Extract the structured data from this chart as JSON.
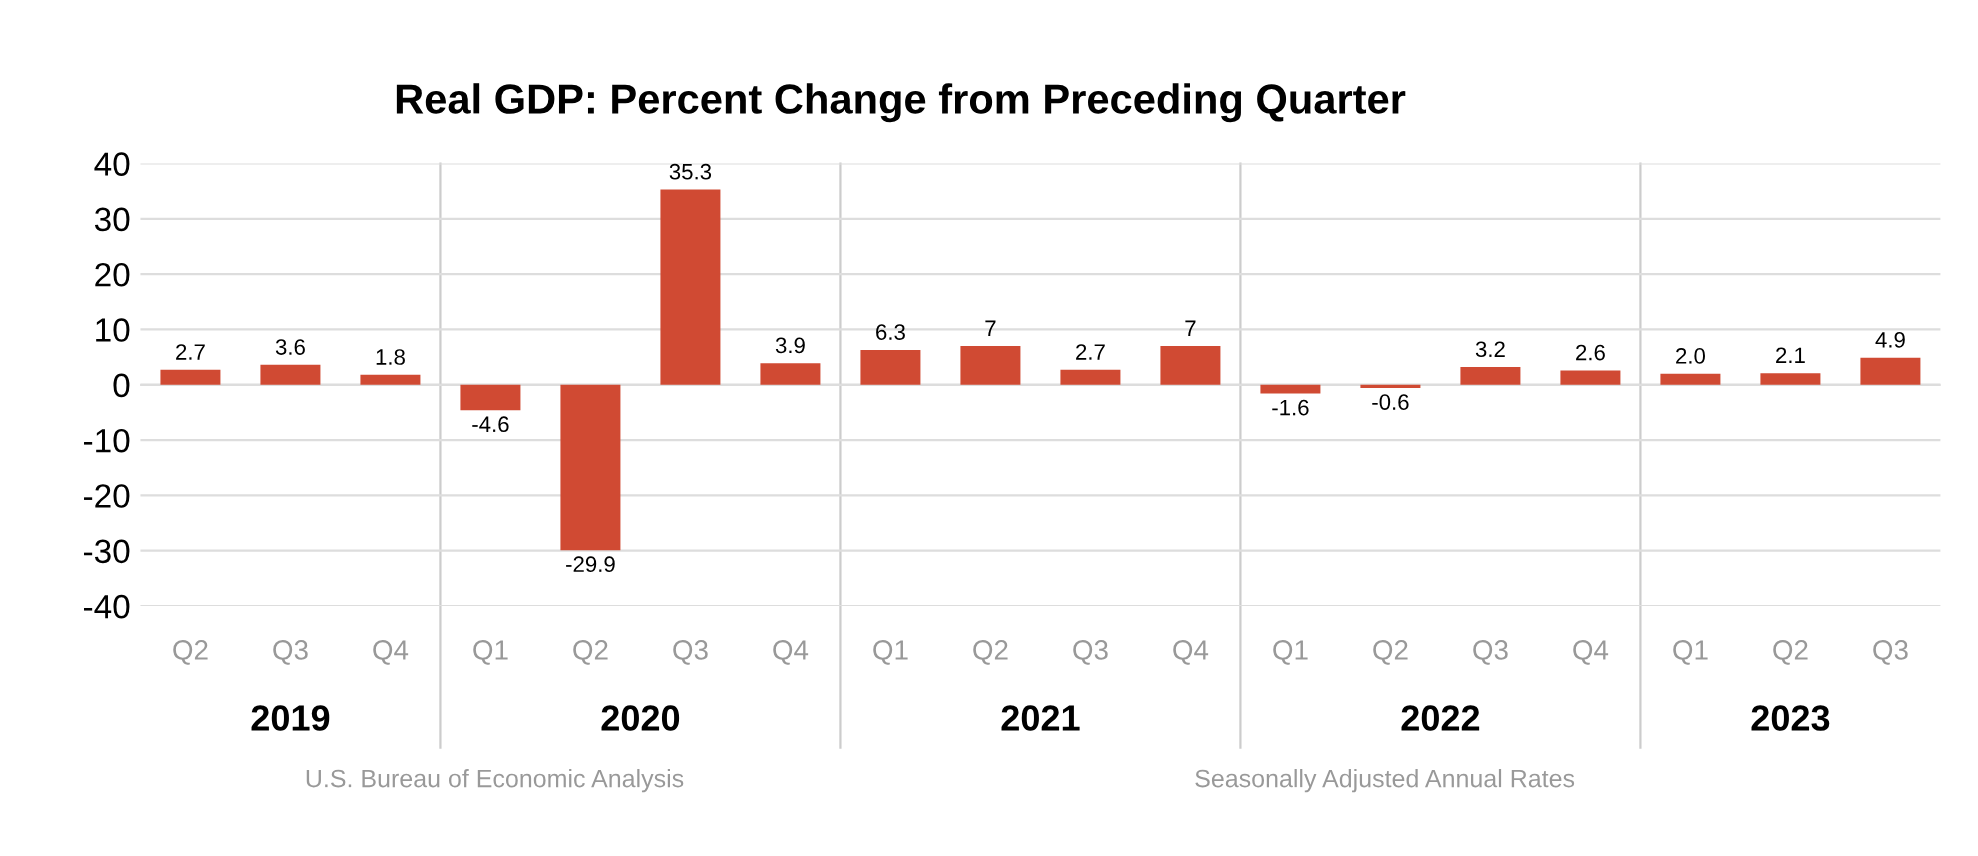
{
  "chart_data": {
    "type": "bar",
    "title": "Real GDP: Percent Change from Preceding Quarter",
    "categories": [
      "Q2",
      "Q3",
      "Q4",
      "Q1",
      "Q2",
      "Q3",
      "Q4",
      "Q1",
      "Q2",
      "Q3",
      "Q4",
      "Q1",
      "Q2",
      "Q3",
      "Q4",
      "Q1",
      "Q2",
      "Q3"
    ],
    "values": [
      2.7,
      3.6,
      1.8,
      -4.6,
      -29.9,
      35.3,
      3.9,
      6.3,
      7,
      2.7,
      7,
      -1.6,
      -0.6,
      3.2,
      2.6,
      2.0,
      2.1,
      4.9
    ],
    "value_labels": [
      "2.7",
      "3.6",
      "1.8",
      "-4.6",
      "-29.9",
      "35.3",
      "3.9",
      "6.3",
      "7",
      "2.7",
      "7",
      "-1.6",
      "-0.6",
      "3.2",
      "2.6",
      "2.0",
      "2.1",
      "4.9"
    ],
    "color": "#d04a33",
    "ylim": [
      -40,
      40
    ],
    "yticks": [
      -40,
      -30,
      -20,
      -10,
      0,
      10,
      20,
      30,
      40
    ],
    "grid": "y",
    "annotations": [
      "2019",
      "2020",
      "2021",
      "2022",
      "2023",
      "U.S. Bureau of Economic Analysis",
      "Seasonally Adjusted Annual Rates"
    ]
  }
}
